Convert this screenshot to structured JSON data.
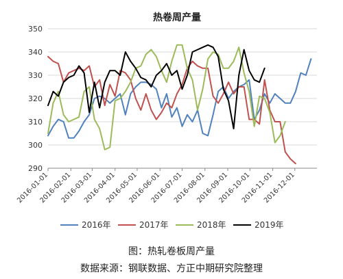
{
  "chart_data": {
    "type": "line",
    "title": "热卷周产量",
    "xlabel": "",
    "ylabel": "",
    "ylim": [
      290,
      350
    ],
    "yticks": [
      290,
      300,
      310,
      320,
      330,
      340,
      350
    ],
    "xticks": [
      "2016-01-01",
      "2016-02-01",
      "2016-03-01",
      "2016-04-01",
      "2016-05-01",
      "2016-06-01",
      "2016-07-01",
      "2016-08-01",
      "2016-09-01",
      "2016-10-01",
      "2016-11-01",
      "2016-12-01"
    ],
    "xlim": [
      "2016-01-01",
      "2016-12-31"
    ],
    "grid": true,
    "legend_position": "bottom",
    "series": [
      {
        "name": "2016年",
        "color": "#4f81bd",
        "points": [
          [
            "2016-01-01",
            304
          ],
          [
            "2016-01-08",
            308
          ],
          [
            "2016-01-15",
            311
          ],
          [
            "2016-01-22",
            310
          ],
          [
            "2016-01-29",
            303
          ],
          [
            "2016-02-05",
            303
          ],
          [
            "2016-02-12",
            306
          ],
          [
            "2016-02-19",
            310
          ],
          [
            "2016-02-26",
            313
          ],
          [
            "2016-03-04",
            320
          ],
          [
            "2016-03-11",
            321
          ],
          [
            "2016-03-18",
            320
          ],
          [
            "2016-03-25",
            318
          ],
          [
            "2016-04-01",
            320
          ],
          [
            "2016-04-08",
            322
          ],
          [
            "2016-04-15",
            313
          ],
          [
            "2016-04-22",
            322
          ],
          [
            "2016-04-29",
            325
          ],
          [
            "2016-05-06",
            327
          ],
          [
            "2016-05-13",
            327
          ],
          [
            "2016-05-20",
            326
          ],
          [
            "2016-05-27",
            324
          ],
          [
            "2016-06-03",
            316
          ],
          [
            "2016-06-10",
            322
          ],
          [
            "2016-06-17",
            312
          ],
          [
            "2016-06-24",
            316
          ],
          [
            "2016-07-01",
            308
          ],
          [
            "2016-07-08",
            313
          ],
          [
            "2016-07-15",
            310
          ],
          [
            "2016-07-22",
            315
          ],
          [
            "2016-07-29",
            305
          ],
          [
            "2016-08-05",
            304
          ],
          [
            "2016-08-12",
            313
          ],
          [
            "2016-08-19",
            323
          ],
          [
            "2016-08-26",
            325
          ],
          [
            "2016-09-02",
            320
          ],
          [
            "2016-09-09",
            323
          ],
          [
            "2016-09-16",
            325
          ],
          [
            "2016-09-23",
            326
          ],
          [
            "2016-09-30",
            328
          ],
          [
            "2016-10-07",
            311
          ],
          [
            "2016-10-14",
            315
          ],
          [
            "2016-10-21",
            322
          ],
          [
            "2016-10-28",
            318
          ],
          [
            "2016-11-04",
            322
          ],
          [
            "2016-11-11",
            320
          ],
          [
            "2016-11-18",
            318
          ],
          [
            "2016-11-25",
            318
          ],
          [
            "2016-12-02",
            323
          ],
          [
            "2016-12-09",
            331
          ],
          [
            "2016-12-16",
            330
          ],
          [
            "2016-12-23",
            337
          ]
        ]
      },
      {
        "name": "2017年",
        "color": "#c0504d",
        "points": [
          [
            "2016-01-01",
            338
          ],
          [
            "2016-01-08",
            336
          ],
          [
            "2016-01-15",
            335
          ],
          [
            "2016-01-22",
            327
          ],
          [
            "2016-01-29",
            331
          ],
          [
            "2016-02-05",
            332
          ],
          [
            "2016-02-12",
            333
          ],
          [
            "2016-02-19",
            332
          ],
          [
            "2016-02-26",
            334
          ],
          [
            "2016-03-04",
            325
          ],
          [
            "2016-03-11",
            328
          ],
          [
            "2016-03-18",
            317
          ],
          [
            "2016-03-25",
            326
          ],
          [
            "2016-04-01",
            321
          ],
          [
            "2016-04-08",
            332
          ],
          [
            "2016-04-15",
            331
          ],
          [
            "2016-04-22",
            328
          ],
          [
            "2016-04-29",
            320
          ],
          [
            "2016-05-06",
            315
          ],
          [
            "2016-05-13",
            322
          ],
          [
            "2016-05-20",
            315
          ],
          [
            "2016-05-27",
            311
          ],
          [
            "2016-06-03",
            314
          ],
          [
            "2016-06-10",
            318
          ],
          [
            "2016-06-17",
            316
          ],
          [
            "2016-06-24",
            322
          ],
          [
            "2016-07-01",
            326
          ],
          [
            "2016-07-08",
            333
          ],
          [
            "2016-07-15",
            336
          ],
          [
            "2016-07-22",
            334
          ],
          [
            "2016-07-29",
            333
          ],
          [
            "2016-08-05",
            333
          ],
          [
            "2016-08-12",
            321
          ],
          [
            "2016-08-19",
            318
          ],
          [
            "2016-08-26",
            322
          ],
          [
            "2016-09-02",
            327
          ],
          [
            "2016-09-09",
            322
          ],
          [
            "2016-09-16",
            325
          ],
          [
            "2016-09-23",
            325
          ],
          [
            "2016-09-30",
            311
          ],
          [
            "2016-10-07",
            311
          ],
          [
            "2016-10-14",
            309
          ],
          [
            "2016-10-21",
            328
          ],
          [
            "2016-10-28",
            315
          ],
          [
            "2016-11-04",
            310
          ],
          [
            "2016-11-11",
            310
          ],
          [
            "2016-11-18",
            297
          ],
          [
            "2016-11-25",
            294
          ],
          [
            "2016-12-02",
            292
          ]
        ]
      },
      {
        "name": "2018年",
        "color": "#9bbb59",
        "points": [
          [
            "2016-01-01",
            305
          ],
          [
            "2016-01-08",
            318
          ],
          [
            "2016-01-15",
            323
          ],
          [
            "2016-01-22",
            313
          ],
          [
            "2016-01-29",
            310
          ],
          [
            "2016-02-05",
            311
          ],
          [
            "2016-02-12",
            312
          ],
          [
            "2016-02-19",
            323
          ],
          [
            "2016-02-26",
            325
          ],
          [
            "2016-03-04",
            311
          ],
          [
            "2016-03-11",
            307
          ],
          [
            "2016-03-18",
            298
          ],
          [
            "2016-03-25",
            299
          ],
          [
            "2016-04-01",
            319
          ],
          [
            "2016-04-08",
            320
          ],
          [
            "2016-04-15",
            323
          ],
          [
            "2016-04-22",
            327
          ],
          [
            "2016-04-29",
            333
          ],
          [
            "2016-05-06",
            334
          ],
          [
            "2016-05-13",
            339
          ],
          [
            "2016-05-20",
            341
          ],
          [
            "2016-05-27",
            338
          ],
          [
            "2016-06-03",
            332
          ],
          [
            "2016-06-10",
            327
          ],
          [
            "2016-06-17",
            336
          ],
          [
            "2016-06-24",
            343
          ],
          [
            "2016-07-01",
            343
          ],
          [
            "2016-07-08",
            333
          ],
          [
            "2016-07-15",
            328
          ],
          [
            "2016-07-22",
            315
          ],
          [
            "2016-07-29",
            324
          ],
          [
            "2016-08-05",
            337
          ],
          [
            "2016-08-12",
            340
          ],
          [
            "2016-08-19",
            339
          ],
          [
            "2016-08-26",
            333
          ],
          [
            "2016-09-02",
            333
          ],
          [
            "2016-09-09",
            336
          ],
          [
            "2016-09-16",
            342
          ],
          [
            "2016-09-23",
            331
          ],
          [
            "2016-09-30",
            323
          ],
          [
            "2016-10-07",
            308
          ],
          [
            "2016-10-14",
            321
          ],
          [
            "2016-10-21",
            320
          ],
          [
            "2016-10-28",
            314
          ],
          [
            "2016-11-04",
            301
          ],
          [
            "2016-11-11",
            304
          ],
          [
            "2016-11-18",
            310
          ]
        ]
      },
      {
        "name": "2019年",
        "color": "#000000",
        "points": [
          [
            "2016-01-01",
            317
          ],
          [
            "2016-01-08",
            323
          ],
          [
            "2016-01-15",
            321
          ],
          [
            "2016-01-22",
            327
          ],
          [
            "2016-01-29",
            329
          ],
          [
            "2016-02-05",
            330
          ],
          [
            "2016-02-12",
            334
          ],
          [
            "2016-02-19",
            331
          ],
          [
            "2016-02-26",
            314
          ],
          [
            "2016-03-04",
            327
          ],
          [
            "2016-03-11",
            316
          ],
          [
            "2016-03-18",
            327
          ],
          [
            "2016-03-25",
            332
          ],
          [
            "2016-04-01",
            332
          ],
          [
            "2016-04-08",
            330
          ],
          [
            "2016-04-15",
            340
          ],
          [
            "2016-04-22",
            336
          ],
          [
            "2016-04-29",
            333
          ],
          [
            "2016-05-06",
            329
          ],
          [
            "2016-05-13",
            328
          ],
          [
            "2016-05-20",
            325
          ],
          [
            "2016-05-27",
            330
          ],
          [
            "2016-06-03",
            332
          ],
          [
            "2016-06-10",
            335
          ],
          [
            "2016-06-17",
            330
          ],
          [
            "2016-06-24",
            332
          ],
          [
            "2016-07-01",
            324
          ],
          [
            "2016-07-08",
            330
          ],
          [
            "2016-07-15",
            340
          ],
          [
            "2016-07-22",
            341
          ],
          [
            "2016-07-29",
            342
          ],
          [
            "2016-08-05",
            343
          ],
          [
            "2016-08-12",
            342
          ],
          [
            "2016-08-19",
            338
          ],
          [
            "2016-08-26",
            324
          ],
          [
            "2016-09-02",
            319
          ],
          [
            "2016-09-09",
            307
          ],
          [
            "2016-09-16",
            330
          ],
          [
            "2016-09-23",
            341
          ],
          [
            "2016-09-30",
            332
          ],
          [
            "2016-10-07",
            328
          ],
          [
            "2016-10-14",
            327
          ],
          [
            "2016-10-21",
            333
          ]
        ]
      }
    ]
  },
  "captions": {
    "figure": "图：热轧卷板周产量",
    "source": "数据来源：钢联数据、方正中期研究院整理"
  }
}
